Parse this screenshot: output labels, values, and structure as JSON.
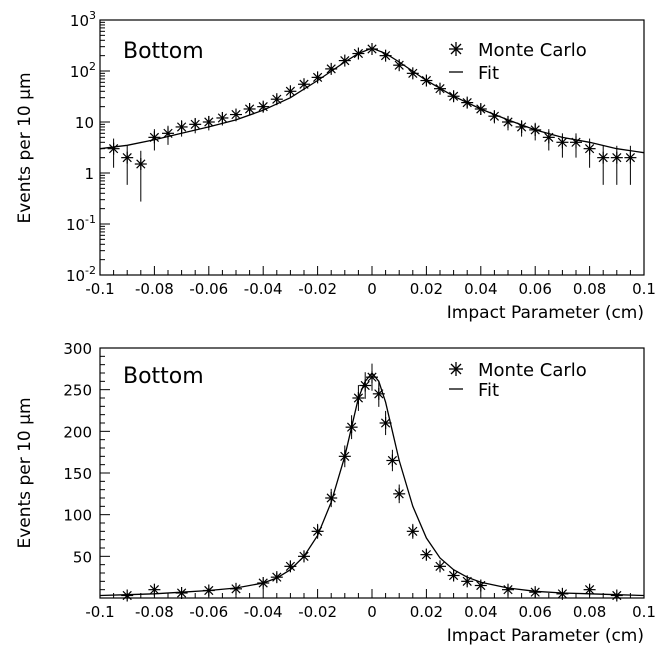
{
  "chart_data": [
    {
      "type": "scatter",
      "title": "Bottom",
      "xlabel": "Impact Parameter (cm)",
      "ylabel": "Events per 10 μm",
      "xlim": [
        -0.1,
        0.1
      ],
      "ylim": [
        0.01,
        1000
      ],
      "yscale": "log",
      "x_ticks": [
        "-0.1",
        "-0.08",
        "-0.06",
        "-0.04",
        "-0.02",
        "0",
        "0.02",
        "0.04",
        "0.06",
        "0.08",
        "0.1"
      ],
      "y_ticks": [
        {
          "base": "10",
          "exp": "-2"
        },
        {
          "base": "10",
          "exp": "-1"
        },
        {
          "base": "1",
          "exp": ""
        },
        {
          "base": "10",
          "exp": ""
        },
        {
          "base": "10",
          "exp": "2"
        },
        {
          "base": "10",
          "exp": "3"
        }
      ],
      "legend": [
        {
          "label": "Monte Carlo",
          "marker": "star"
        },
        {
          "label": "Fit",
          "marker": "line"
        }
      ],
      "legend_position": "top-right",
      "series": [
        {
          "name": "Monte Carlo",
          "x": [
            -0.095,
            -0.09,
            -0.085,
            -0.08,
            -0.075,
            -0.07,
            -0.065,
            -0.06,
            -0.055,
            -0.05,
            -0.045,
            -0.04,
            -0.035,
            -0.03,
            -0.025,
            -0.02,
            -0.015,
            -0.01,
            -0.005,
            0,
            0.005,
            0.01,
            0.015,
            0.02,
            0.025,
            0.03,
            0.035,
            0.04,
            0.045,
            0.05,
            0.055,
            0.06,
            0.065,
            0.07,
            0.075,
            0.08,
            0.085,
            0.09,
            0.095
          ],
          "y": [
            3,
            2,
            1.5,
            5,
            6,
            8,
            9,
            10,
            12,
            14,
            18,
            20,
            28,
            40,
            55,
            75,
            110,
            160,
            220,
            270,
            200,
            130,
            90,
            65,
            45,
            32,
            24,
            18,
            13,
            10,
            8,
            7,
            5,
            4,
            4,
            3,
            2,
            2,
            2
          ]
        },
        {
          "name": "Fit",
          "x": [
            -0.1,
            -0.09,
            -0.08,
            -0.07,
            -0.06,
            -0.05,
            -0.04,
            -0.03,
            -0.02,
            -0.01,
            -0.005,
            0,
            0.005,
            0.01,
            0.02,
            0.03,
            0.04,
            0.05,
            0.06,
            0.07,
            0.08,
            0.09,
            0.1
          ],
          "y": [
            3,
            3.5,
            4.5,
            6,
            8,
            11,
            17,
            30,
            65,
            150,
            220,
            280,
            220,
            150,
            65,
            32,
            18,
            11,
            7,
            5,
            4,
            3,
            2.5
          ]
        }
      ]
    },
    {
      "type": "scatter",
      "title": "Bottom",
      "xlabel": "Impact Parameter (cm)",
      "ylabel": "Events per 10 μm",
      "xlim": [
        -0.1,
        0.1
      ],
      "ylim": [
        0,
        300
      ],
      "yscale": "linear",
      "x_ticks": [
        "-0.1",
        "-0.08",
        "-0.06",
        "-0.04",
        "-0.02",
        "0",
        "0.02",
        "0.04",
        "0.06",
        "0.08",
        "0.1"
      ],
      "y_ticks": [
        "50",
        "100",
        "150",
        "200",
        "250",
        "300"
      ],
      "legend": [
        {
          "label": "Monte Carlo",
          "marker": "star"
        },
        {
          "label": "Fit",
          "marker": "line"
        }
      ],
      "legend_position": "top-right",
      "series": [
        {
          "name": "Monte Carlo",
          "x": [
            -0.09,
            -0.08,
            -0.07,
            -0.06,
            -0.05,
            -0.04,
            -0.035,
            -0.03,
            -0.025,
            -0.02,
            -0.015,
            -0.01,
            -0.0075,
            -0.005,
            -0.0025,
            0,
            0.0025,
            0.005,
            0.0075,
            0.01,
            0.015,
            0.02,
            0.025,
            0.03,
            0.035,
            0.04,
            0.05,
            0.06,
            0.07,
            0.08,
            0.09
          ],
          "y": [
            3,
            10,
            6,
            9,
            11,
            18,
            25,
            38,
            50,
            80,
            120,
            170,
            205,
            240,
            255,
            265,
            245,
            210,
            165,
            125,
            80,
            52,
            38,
            27,
            20,
            15,
            10,
            7,
            5,
            10,
            3
          ]
        },
        {
          "name": "Fit",
          "x": [
            -0.1,
            -0.09,
            -0.08,
            -0.07,
            -0.06,
            -0.05,
            -0.04,
            -0.035,
            -0.03,
            -0.025,
            -0.02,
            -0.015,
            -0.01,
            -0.0075,
            -0.005,
            -0.0025,
            0,
            0.0025,
            0.005,
            0.0075,
            0.01,
            0.015,
            0.02,
            0.025,
            0.03,
            0.035,
            0.04,
            0.05,
            0.06,
            0.07,
            0.08,
            0.09,
            0.1
          ],
          "y": [
            3,
            4,
            5,
            7,
            9,
            12,
            18,
            24,
            34,
            50,
            75,
            115,
            170,
            205,
            240,
            260,
            270,
            260,
            235,
            200,
            165,
            110,
            72,
            48,
            34,
            25,
            19,
            12,
            8,
            6,
            5,
            4,
            3
          ]
        }
      ]
    }
  ]
}
